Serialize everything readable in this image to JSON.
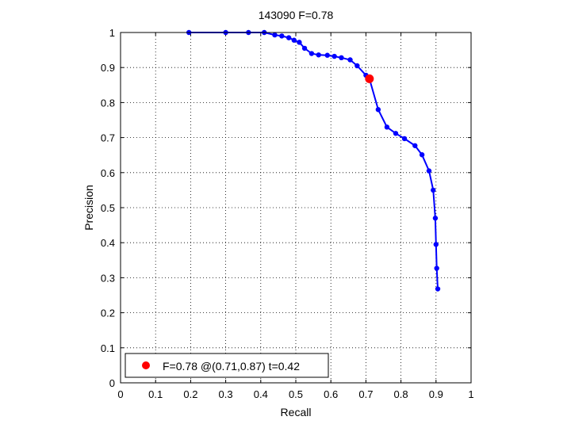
{
  "chart_data": {
    "type": "line",
    "title": "143090 F=0.78",
    "xlabel": "Recall",
    "ylabel": "Precision",
    "xlim": [
      0,
      1
    ],
    "ylim": [
      0,
      1
    ],
    "xticks": [
      "0",
      "0.1",
      "0.2",
      "0.3",
      "0.4",
      "0.5",
      "0.6",
      "0.7",
      "0.8",
      "0.9",
      "1"
    ],
    "yticks": [
      "0",
      "0.1",
      "0.2",
      "0.3",
      "0.4",
      "0.5",
      "0.6",
      "0.7",
      "0.8",
      "0.9",
      "1"
    ],
    "grid": true,
    "legend_position": "bottom-left",
    "series": [
      {
        "color": "#0000ff",
        "marker": "dot",
        "x": [
          0.195,
          0.3,
          0.365,
          0.41,
          0.44,
          0.46,
          0.48,
          0.495,
          0.51,
          0.525,
          0.545,
          0.565,
          0.59,
          0.61,
          0.63,
          0.655,
          0.675,
          0.7,
          0.71,
          0.735,
          0.76,
          0.785,
          0.81,
          0.84,
          0.86,
          0.88,
          0.892,
          0.898,
          0.9,
          0.902,
          0.905
        ],
        "y": [
          1.0,
          1.0,
          1.0,
          1.0,
          0.993,
          0.99,
          0.985,
          0.978,
          0.972,
          0.955,
          0.94,
          0.936,
          0.935,
          0.932,
          0.928,
          0.922,
          0.905,
          0.878,
          0.868,
          0.78,
          0.73,
          0.712,
          0.697,
          0.677,
          0.651,
          0.605,
          0.55,
          0.47,
          0.395,
          0.327,
          0.268
        ]
      }
    ],
    "highlight": {
      "x": 0.71,
      "y": 0.868,
      "color": "#ff0000"
    },
    "legend": {
      "label": "F=0.78 @(0.71,0.87) t=0.42",
      "color": "#ff0000"
    }
  }
}
